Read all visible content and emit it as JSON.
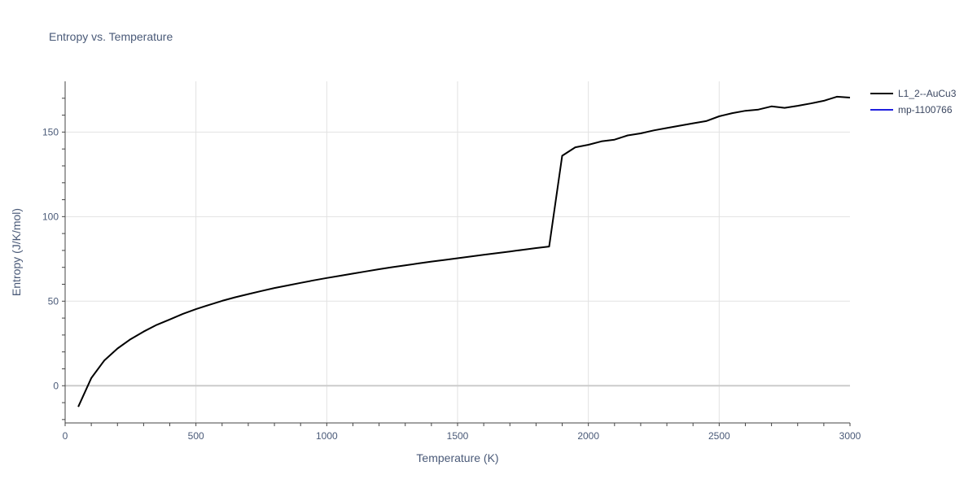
{
  "chart_data": {
    "type": "line",
    "title": "Entropy vs. Temperature",
    "xlabel": "Temperature (K)",
    "ylabel": "Entropy (J/K/mol)",
    "xlim": [
      0,
      3000
    ],
    "ylim": [
      -22,
      180
    ],
    "xticks": [
      0,
      500,
      1000,
      1500,
      2000,
      2500,
      3000
    ],
    "yticks": [
      0,
      50,
      100,
      150
    ],
    "grid": true,
    "legend_position": "top-right",
    "series": [
      {
        "name": "L1_2--AuCu3",
        "color": "#000000",
        "x": [
          50,
          100,
          150,
          200,
          250,
          300,
          350,
          400,
          450,
          500,
          550,
          600,
          650,
          700,
          750,
          800,
          850,
          900,
          950,
          1000,
          1050,
          1100,
          1150,
          1200,
          1250,
          1300,
          1350,
          1400,
          1450,
          1500,
          1550,
          1600,
          1650,
          1700,
          1750,
          1800,
          1850,
          1900,
          1950,
          2000,
          2050,
          2100,
          2150,
          2200,
          2250,
          2300,
          2350,
          2400,
          2450,
          2500,
          2550,
          2600,
          2650,
          2700,
          2750,
          2800,
          2850,
          2900,
          2950,
          3000
        ],
        "y": [
          -12.5,
          4.5,
          15,
          22,
          27.5,
          32,
          36,
          39.2,
          42.5,
          45.3,
          47.8,
          50.2,
          52.3,
          54.2,
          56,
          57.8,
          59.3,
          60.8,
          62.3,
          63.7,
          65,
          66.3,
          67.6,
          68.9,
          70.1,
          71.2,
          72.3,
          73.4,
          74.4,
          75.4,
          76.4,
          77.4,
          78.4,
          79.4,
          80.4,
          81.4,
          82.3,
          136,
          141,
          142.5,
          144.5,
          145.5,
          148,
          149.2,
          151,
          152.4,
          153.8,
          155.2,
          156.5,
          159.3,
          161.2,
          162.6,
          163.3,
          165.2,
          164.3,
          165.5,
          166.9,
          168.5,
          170.9,
          170.4
        ]
      },
      {
        "name": "mp-1100766",
        "color": "#1f1fdf",
        "x": [],
        "y": []
      }
    ]
  }
}
